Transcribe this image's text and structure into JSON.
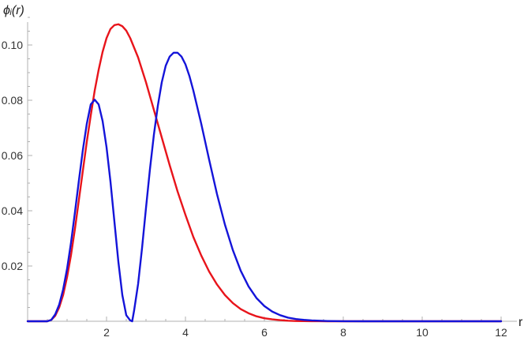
{
  "chart_data": {
    "type": "line",
    "title": "",
    "xlabel": "r",
    "ylabel": "ϕᵢ(r)",
    "xlim": [
      0,
      12
    ],
    "ylim": [
      0,
      0.11
    ],
    "x_ticks": [
      2,
      4,
      6,
      8,
      10,
      12
    ],
    "x_tick_labels": [
      "2",
      "4",
      "6",
      "8",
      "10",
      "12"
    ],
    "y_ticks": [
      0.02,
      0.04,
      0.06,
      0.08,
      0.1
    ],
    "y_tick_labels": [
      "0.02",
      "0.04",
      "0.06",
      "0.08",
      "0.10"
    ],
    "grid": false,
    "legend": "none",
    "series": [
      {
        "color": "#e8141b",
        "x": [
          0,
          0.5,
          0.6,
          0.7,
          0.8,
          0.9,
          1.0,
          1.1,
          1.2,
          1.3,
          1.4,
          1.5,
          1.6,
          1.7,
          1.8,
          1.9,
          2.0,
          2.1,
          2.2,
          2.3,
          2.4,
          2.5,
          2.6,
          2.8,
          3.0,
          3.2,
          3.4,
          3.6,
          3.8,
          4.0,
          4.2,
          4.4,
          4.6,
          4.8,
          5.0,
          5.2,
          5.4,
          5.6,
          5.8,
          6.0,
          6.2,
          6.4,
          6.6,
          6.8,
          7.0,
          7.2,
          7.4,
          7.6,
          7.8,
          8.0,
          9.0,
          10.0,
          11.0,
          12.0
        ],
        "y": [
          0,
          0,
          0.0005,
          0.002,
          0.005,
          0.0095,
          0.016,
          0.024,
          0.0335,
          0.044,
          0.0545,
          0.065,
          0.0745,
          0.0835,
          0.091,
          0.0975,
          0.1025,
          0.1058,
          0.1072,
          0.1075,
          0.1068,
          0.1052,
          0.1025,
          0.0955,
          0.0865,
          0.0765,
          0.0665,
          0.0565,
          0.047,
          0.0385,
          0.0305,
          0.0238,
          0.018,
          0.0133,
          0.0095,
          0.0066,
          0.0044,
          0.0029,
          0.0018,
          0.0011,
          0.0007,
          0.0004,
          0.0002,
          0.0001,
          5e-05,
          2e-05,
          1e-05,
          0,
          0,
          0,
          0,
          0,
          0,
          0
        ]
      },
      {
        "color": "#1414d9",
        "x": [
          0,
          0.5,
          0.6,
          0.7,
          0.8,
          0.9,
          1.0,
          1.1,
          1.2,
          1.3,
          1.4,
          1.5,
          1.6,
          1.7,
          1.8,
          1.9,
          2.0,
          2.1,
          2.2,
          2.3,
          2.4,
          2.5,
          2.6,
          2.65,
          2.7,
          2.8,
          2.9,
          3.0,
          3.1,
          3.2,
          3.3,
          3.4,
          3.5,
          3.6,
          3.7,
          3.8,
          3.9,
          4.0,
          4.1,
          4.2,
          4.4,
          4.6,
          4.8,
          5.0,
          5.2,
          5.4,
          5.6,
          5.8,
          6.0,
          6.2,
          6.4,
          6.6,
          6.8,
          7.0,
          7.2,
          7.4,
          7.6,
          7.8,
          8.0,
          8.5,
          9.0,
          10.0,
          11.0,
          12.0
        ],
        "y": [
          0,
          0,
          0.0005,
          0.0025,
          0.006,
          0.0115,
          0.019,
          0.0285,
          0.0395,
          0.051,
          0.062,
          0.0715,
          0.0785,
          0.0802,
          0.0785,
          0.0725,
          0.063,
          0.0505,
          0.036,
          0.0215,
          0.0095,
          0.0022,
          0.0003,
          0,
          0.004,
          0.0135,
          0.0265,
          0.041,
          0.055,
          0.0675,
          0.078,
          0.0865,
          0.0925,
          0.0958,
          0.0972,
          0.0972,
          0.0958,
          0.093,
          0.0888,
          0.0835,
          0.0715,
          0.0585,
          0.046,
          0.035,
          0.0258,
          0.0183,
          0.0126,
          0.0084,
          0.0055,
          0.0035,
          0.0022,
          0.0013,
          0.0008,
          0.0005,
          0.0003,
          0.0002,
          0.0001,
          5e-05,
          2e-05,
          0,
          0,
          0,
          0,
          0
        ]
      }
    ]
  }
}
